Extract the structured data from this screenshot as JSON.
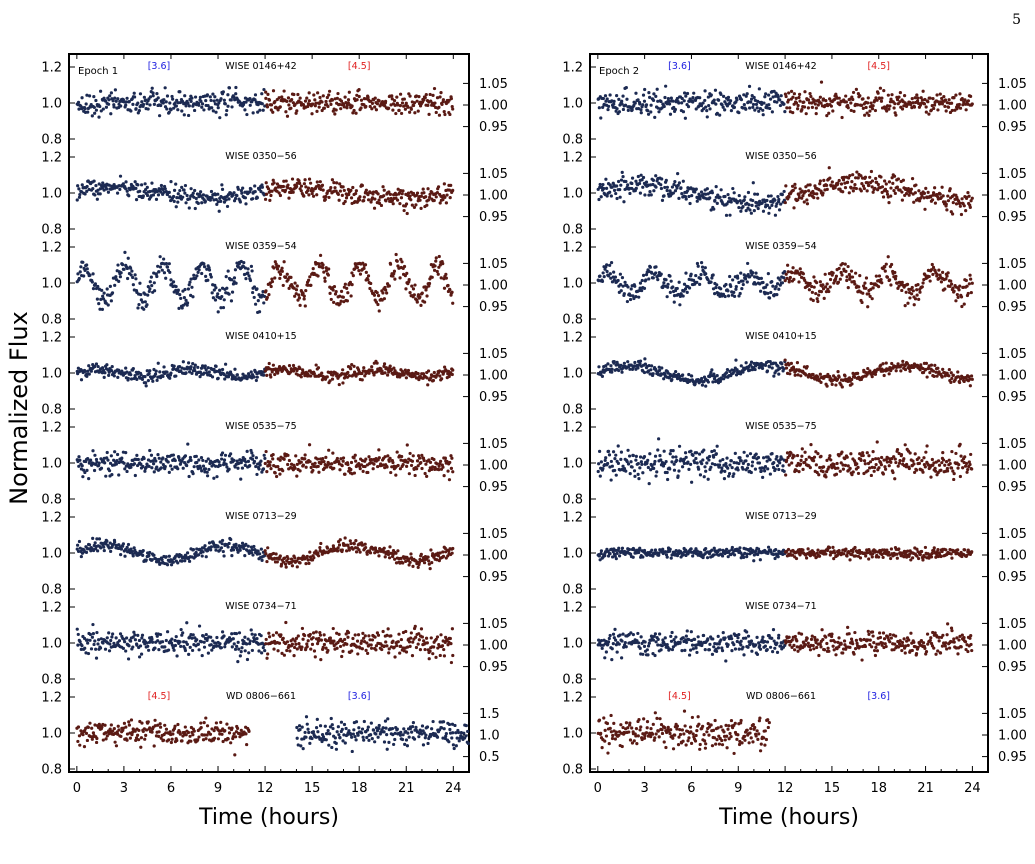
{
  "page_number": "5",
  "shared": {
    "ylabel": "Normalized Flux",
    "xlabel": "Time (hours)",
    "x_ticks": [
      "0",
      "3",
      "6",
      "9",
      "12",
      "15",
      "18",
      "21",
      "24"
    ],
    "left_y_ticks": [
      "1.2",
      "1.0",
      "0.8"
    ],
    "right_y_ticks": [
      "1.05",
      "1.00",
      "0.95"
    ],
    "right_y_ticks_wd_epoch1": [
      "1.5",
      "1.0",
      "0.5"
    ],
    "band_labels": {
      "blue": "[3.6]",
      "red": "[4.5]"
    },
    "colors": {
      "ch1": "#1c2a52",
      "ch2": "#5a1a14",
      "label_blue": "#2020e0",
      "label_red": "#e02020"
    }
  },
  "chart_data": [
    {
      "type": "scatter",
      "epoch_label": "Epoch 1",
      "xlim": [
        -0.5,
        25
      ],
      "rows": [
        {
          "target": "WISE 0146+42",
          "first_band": "[3.6]",
          "second_band": "[4.5]",
          "ylim": [
            0.75,
            1.25
          ],
          "blue_span": [
            0,
            12
          ],
          "red_span": [
            12,
            24
          ],
          "amp": 0.04,
          "noise": 0.045,
          "period": 0
        },
        {
          "target": "WISE 0350−56",
          "first_band": "[3.6]",
          "second_band": "[4.5]",
          "ylim": [
            0.75,
            1.25
          ],
          "blue_span": [
            0,
            12
          ],
          "red_span": [
            12,
            24
          ],
          "amp": 0.03,
          "noise": 0.04,
          "period": 12
        },
        {
          "target": "WISE 0359−54",
          "first_band": "[3.6]",
          "second_band": "[4.5]",
          "ylim": [
            0.75,
            1.25
          ],
          "blue_span": [
            0,
            12
          ],
          "red_span": [
            12,
            24
          ],
          "amp": 0.09,
          "noise": 0.05,
          "period": 2.5
        },
        {
          "target": "WISE 0410+15",
          "first_band": "[3.6]",
          "second_band": "[4.5]",
          "ylim": [
            0.75,
            1.25
          ],
          "blue_span": [
            0,
            12
          ],
          "red_span": [
            12,
            24
          ],
          "amp": 0.02,
          "noise": 0.025,
          "period": 6
        },
        {
          "target": "WISE 0535−75",
          "first_band": "[3.6]",
          "second_band": "[4.5]",
          "ylim": [
            0.75,
            1.25
          ],
          "blue_span": [
            0,
            12
          ],
          "red_span": [
            12,
            24
          ],
          "amp": 0.01,
          "noise": 0.045,
          "period": 0
        },
        {
          "target": "WISE 0713−29",
          "first_band": "[3.6]",
          "second_band": "[4.5]",
          "ylim": [
            0.75,
            1.25
          ],
          "blue_span": [
            0,
            12
          ],
          "red_span": [
            12,
            24
          ],
          "amp": 0.04,
          "noise": 0.025,
          "period": 8
        },
        {
          "target": "WISE 0734−71",
          "first_band": "[3.6]",
          "second_band": "[4.5]",
          "ylim": [
            0.75,
            1.25
          ],
          "blue_span": [
            0,
            12
          ],
          "red_span": [
            12,
            24
          ],
          "amp": 0.01,
          "noise": 0.05,
          "period": 0
        },
        {
          "target": "WD 0806−661",
          "first_band": "[4.5]",
          "second_band": "[3.6]",
          "ylim": [
            0.75,
            1.25
          ],
          "blue_span": [
            14,
            25
          ],
          "red_span": [
            0,
            11
          ],
          "amp": 0.0,
          "noise": 0.05,
          "period": 0
        }
      ]
    },
    {
      "type": "scatter",
      "epoch_label": "Epoch 2",
      "xlim": [
        -0.5,
        25
      ],
      "rows": [
        {
          "target": "WISE 0146+42",
          "first_band": "[3.6]",
          "second_band": "[4.5]",
          "ylim": [
            0.75,
            1.25
          ],
          "blue_span": [
            0,
            12
          ],
          "red_span": [
            12,
            24
          ],
          "amp": 0.02,
          "noise": 0.045,
          "period": 0
        },
        {
          "target": "WISE 0350−56",
          "first_band": "[3.6]",
          "second_band": "[4.5]",
          "ylim": [
            0.75,
            1.25
          ],
          "blue_span": [
            0,
            12
          ],
          "red_span": [
            12,
            24
          ],
          "amp": 0.05,
          "noise": 0.045,
          "period": 14
        },
        {
          "target": "WISE 0359−54",
          "first_band": "[3.6]",
          "second_band": "[4.5]",
          "ylim": [
            0.75,
            1.25
          ],
          "blue_span": [
            0,
            12
          ],
          "red_span": [
            12,
            24
          ],
          "amp": 0.05,
          "noise": 0.05,
          "period": 3
        },
        {
          "target": "WISE 0410+15",
          "first_band": "[3.6]",
          "second_band": "[4.5]",
          "ylim": [
            0.75,
            1.25
          ],
          "blue_span": [
            0,
            12
          ],
          "red_span": [
            12,
            24
          ],
          "amp": 0.04,
          "noise": 0.025,
          "period": 9
        },
        {
          "target": "WISE 0535−75",
          "first_band": "[3.6]",
          "second_band": "[4.5]",
          "ylim": [
            0.75,
            1.25
          ],
          "blue_span": [
            0,
            12
          ],
          "red_span": [
            12,
            24
          ],
          "amp": 0.01,
          "noise": 0.06,
          "period": 0
        },
        {
          "target": "WISE 0713−29",
          "first_band": "[3.6]",
          "second_band": "[4.5]",
          "ylim": [
            0.75,
            1.25
          ],
          "blue_span": [
            0,
            12
          ],
          "red_span": [
            12,
            24
          ],
          "amp": 0.01,
          "noise": 0.02,
          "period": 0
        },
        {
          "target": "WISE 0734−71",
          "first_band": "[3.6]",
          "second_band": "[4.5]",
          "ylim": [
            0.75,
            1.25
          ],
          "blue_span": [
            0,
            12
          ],
          "red_span": [
            12,
            24
          ],
          "amp": 0.01,
          "noise": 0.045,
          "period": 0
        },
        {
          "target": "WD 0806−661",
          "first_band": "[4.5]",
          "second_band": "[3.6]",
          "ylim": [
            0.75,
            1.25
          ],
          "blue_span": [
            0,
            0
          ],
          "red_span": [
            0,
            11
          ],
          "amp": 0.0,
          "noise": 0.06,
          "period": 0
        }
      ]
    }
  ]
}
